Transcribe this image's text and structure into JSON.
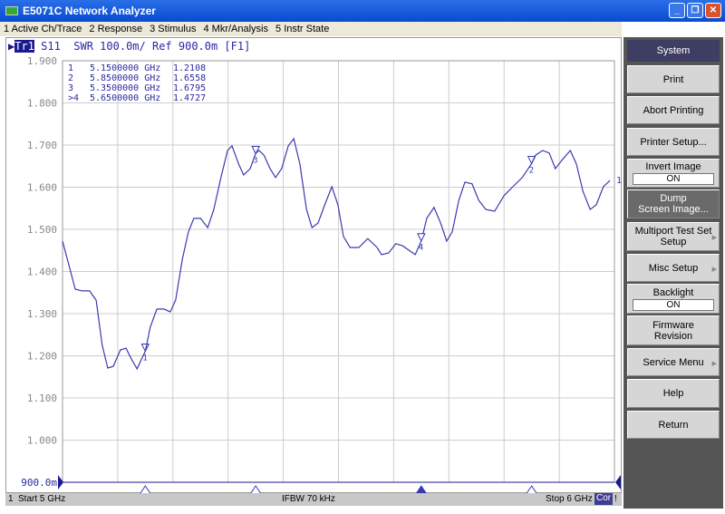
{
  "window": {
    "title": "E5071C Network Analyzer",
    "buttons": [
      "minimize",
      "restore",
      "close"
    ]
  },
  "menu": [
    "1 Active Ch/Trace",
    "2 Response",
    "3 Stimulus",
    "4 Mkr/Analysis",
    "5 Instr State"
  ],
  "trace_header": {
    "trace": "Tr1",
    "text": " S11  SWR 100.0m/ Ref 900.0m [F1]"
  },
  "markers_table": [
    {
      "id": "1",
      "freq": "5.1500000 GHz",
      "value": "1.2108"
    },
    {
      "id": "2",
      "freq": "5.8500000 GHz",
      "value": "1.6558"
    },
    {
      "id": "3",
      "freq": "5.3500000 GHz",
      "value": "1.6795"
    },
    {
      "id": ">4",
      "freq": "5.6500000 GHz",
      "value": "1.4727"
    }
  ],
  "status": {
    "channel": "1",
    "start": "Start 5 GHz",
    "ifbw": "IFBW 70 kHz",
    "stop": "Stop 6 GHz",
    "cor": "Cor",
    "extra": "!"
  },
  "softkeys": [
    {
      "label": "System",
      "type": "header"
    },
    {
      "label": "Print"
    },
    {
      "label": "Abort Printing"
    },
    {
      "label": "Printer Setup..."
    },
    {
      "label": "Invert Image",
      "value": "ON"
    },
    {
      "label": "Dump\nScreen Image...",
      "type": "selected"
    },
    {
      "label": "Multiport Test Set\nSetup",
      "submenu": true
    },
    {
      "label": "Misc Setup",
      "submenu": true
    },
    {
      "label": "Backlight",
      "value": "ON"
    },
    {
      "label": "Firmware\nRevision"
    },
    {
      "label": "Service Menu",
      "submenu": true
    },
    {
      "label": "Help"
    },
    {
      "label": "Return"
    }
  ],
  "chart_data": {
    "type": "line",
    "xlabel": "",
    "ylabel": "",
    "xlim": [
      5,
      6
    ],
    "ylim": [
      0.9,
      1.9
    ],
    "yticks": [
      "1.900",
      "1.800",
      "1.700",
      "1.600",
      "1.500",
      "1.400",
      "1.300",
      "1.200",
      "1.100",
      "1.000",
      "900.0m"
    ],
    "grid": true,
    "trace_color": "#3a3ab0",
    "x": [
      5.0,
      5.011,
      5.023,
      5.036,
      5.049,
      5.061,
      5.072,
      5.082,
      5.092,
      5.105,
      5.115,
      5.125,
      5.135,
      5.143,
      5.15,
      5.159,
      5.171,
      5.184,
      5.195,
      5.205,
      5.217,
      5.228,
      5.238,
      5.25,
      5.263,
      5.274,
      5.287,
      5.299,
      5.307,
      5.319,
      5.328,
      5.34,
      5.35,
      5.356,
      5.365,
      5.376,
      5.386,
      5.397,
      5.409,
      5.419,
      5.43,
      5.442,
      5.452,
      5.463,
      5.475,
      5.488,
      5.499,
      5.509,
      5.521,
      5.537,
      5.553,
      5.57,
      5.578,
      5.591,
      5.604,
      5.616,
      5.627,
      5.639,
      5.65,
      5.66,
      5.673,
      5.685,
      5.696,
      5.706,
      5.718,
      5.729,
      5.742,
      5.754,
      5.767,
      5.783,
      5.8,
      5.816,
      5.833,
      5.85,
      5.857,
      5.87,
      5.882,
      5.893,
      5.906,
      5.92,
      5.931,
      5.943,
      5.956,
      5.967,
      5.98,
      5.992
    ],
    "y": [
      1.472,
      1.418,
      1.358,
      1.354,
      1.354,
      1.332,
      1.225,
      1.171,
      1.175,
      1.214,
      1.218,
      1.192,
      1.169,
      1.192,
      1.211,
      1.268,
      1.311,
      1.311,
      1.304,
      1.332,
      1.429,
      1.494,
      1.526,
      1.526,
      1.504,
      1.547,
      1.623,
      1.687,
      1.698,
      1.655,
      1.629,
      1.644,
      1.68,
      1.687,
      1.676,
      1.644,
      1.623,
      1.644,
      1.698,
      1.715,
      1.655,
      1.547,
      1.504,
      1.515,
      1.558,
      1.601,
      1.558,
      1.483,
      1.457,
      1.457,
      1.478,
      1.457,
      1.44,
      1.444,
      1.466,
      1.461,
      1.451,
      1.44,
      1.473,
      1.526,
      1.552,
      1.515,
      1.472,
      1.494,
      1.569,
      1.612,
      1.608,
      1.569,
      1.547,
      1.543,
      1.58,
      1.601,
      1.623,
      1.656,
      1.676,
      1.687,
      1.681,
      1.644,
      1.666,
      1.687,
      1.655,
      1.59,
      1.547,
      1.558,
      1.601,
      1.616
    ],
    "markers": [
      {
        "id": "1",
        "x": 5.15,
        "y": 1.2108
      },
      {
        "id": "2",
        "x": 5.85,
        "y": 1.6558
      },
      {
        "id": "3",
        "x": 5.35,
        "y": 1.6795
      },
      {
        "id": "4",
        "x": 5.65,
        "y": 1.4727,
        "active": true
      }
    ]
  }
}
